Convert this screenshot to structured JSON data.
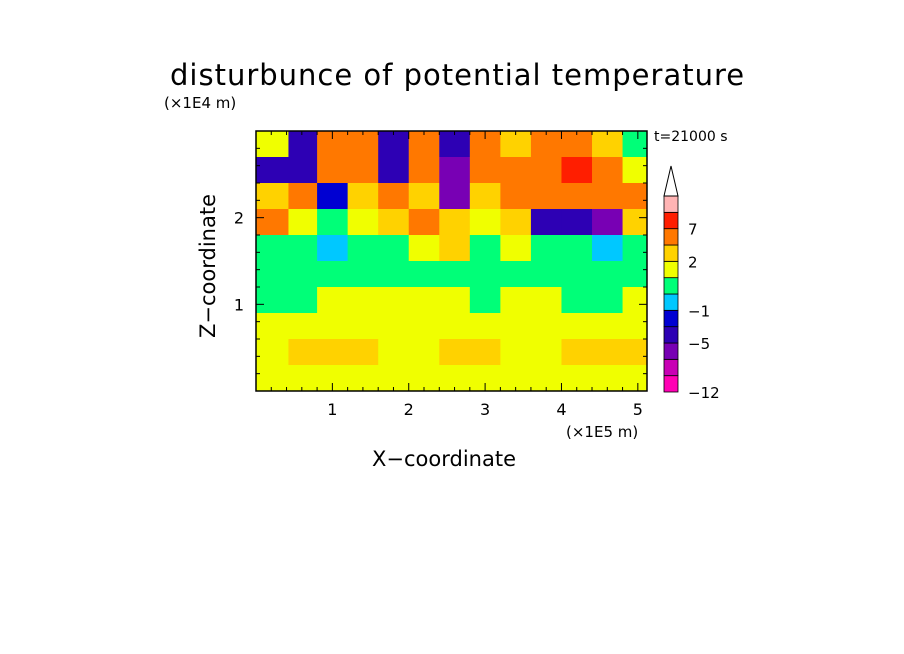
{
  "chart_data": {
    "type": "heatmap",
    "title": "disturbunce of potential temperature",
    "xlabel": "X−coordinate",
    "ylabel": "Z−coordinate",
    "x_unit": "(×1E5 m)",
    "y_unit": "(×1E4 m)",
    "annotation": "t=21000 s",
    "xlim": [
      0,
      5.12
    ],
    "ylim": [
      0,
      3.0
    ],
    "x_ticks": [
      1,
      2,
      3,
      4,
      5
    ],
    "y_ticks": [
      1,
      2
    ],
    "x_tick_labels": [
      "1",
      "2",
      "3",
      "4",
      "5"
    ],
    "y_tick_labels": [
      "1",
      "2"
    ],
    "colorbar": {
      "levels": [
        -12,
        -10,
        -7,
        -5,
        -3,
        -1,
        0,
        1,
        2,
        4,
        7,
        9,
        12
      ],
      "tick_labels": [
        {
          "label": "7",
          "level": 7
        },
        {
          "label": "2",
          "level": 2
        },
        {
          "label": "−1",
          "level": -1
        },
        {
          "label": "−5",
          "level": -5
        },
        {
          "label": "−12",
          "level": -12
        }
      ],
      "colors": [
        "#ff00b4",
        "#c800b4",
        "#7800b4",
        "#2d00b4",
        "#0000d2",
        "#00c8ff",
        "#00ff78",
        "#f0ff00",
        "#ffd200",
        "#ff7800",
        "#ff1e00",
        "#ffb4b4",
        "#ffffff"
      ],
      "extends_max": true
    },
    "field_rows_top_to_bottom": [
      {
        "z": 2.85,
        "x": [
          0.25,
          0.6,
          1.0,
          1.4,
          1.8,
          2.2,
          2.6,
          3.0,
          3.4,
          3.8,
          4.2,
          4.6,
          5.0
        ],
        "values": [
          1,
          -5,
          5,
          4,
          -5,
          6,
          -5,
          6,
          3,
          5,
          4,
          3,
          0
        ]
      },
      {
        "z": 2.55,
        "x": [
          0.25,
          0.6,
          1.0,
          1.4,
          1.8,
          2.2,
          2.6,
          3.0,
          3.4,
          3.8,
          4.2,
          4.6,
          5.0
        ],
        "values": [
          -5,
          -5,
          4,
          5,
          -5,
          5,
          -6,
          5,
          4,
          6,
          7,
          5,
          1
        ]
      },
      {
        "z": 2.25,
        "x": [
          0.25,
          0.6,
          1.0,
          1.4,
          1.8,
          2.2,
          2.6,
          3.0,
          3.4,
          3.8,
          4.2,
          4.6,
          5.0
        ],
        "values": [
          3,
          4,
          -2,
          3,
          5,
          3,
          -6,
          2,
          4,
          4,
          5,
          4,
          5
        ]
      },
      {
        "z": 1.95,
        "x": [
          0.25,
          0.6,
          1.0,
          1.4,
          1.8,
          2.2,
          2.6,
          3.0,
          3.4,
          3.8,
          4.2,
          4.6,
          5.0
        ],
        "values": [
          5,
          1,
          0,
          1,
          2,
          4,
          3,
          1,
          2,
          -5,
          -4,
          -6,
          2
        ]
      },
      {
        "z": 1.65,
        "x": [
          0.25,
          0.6,
          1.0,
          1.4,
          1.8,
          2.2,
          2.6,
          3.0,
          3.4,
          3.8,
          4.2,
          4.6,
          5.0
        ],
        "values": [
          0,
          0,
          -1,
          0,
          0,
          1,
          2,
          0,
          1,
          0,
          0,
          -1,
          0
        ]
      },
      {
        "z": 1.35,
        "x": [
          0.25,
          0.6,
          1.0,
          1.4,
          1.8,
          2.2,
          2.6,
          3.0,
          3.4,
          3.8,
          4.2,
          4.6,
          5.0
        ],
        "values": [
          0,
          0,
          0,
          0,
          0,
          0,
          0,
          0,
          0,
          0,
          0,
          0,
          0
        ]
      },
      {
        "z": 1.05,
        "x": [
          0.25,
          0.6,
          1.0,
          1.4,
          1.8,
          2.2,
          2.6,
          3.0,
          3.4,
          3.8,
          4.2,
          4.6,
          5.0
        ],
        "values": [
          0,
          0,
          1,
          1,
          1,
          1,
          1,
          0,
          1,
          1,
          0,
          0,
          1
        ]
      },
      {
        "z": 0.75,
        "x": [
          0.25,
          0.6,
          1.0,
          1.4,
          1.8,
          2.2,
          2.6,
          3.0,
          3.4,
          3.8,
          4.2,
          4.6,
          5.0
        ],
        "values": [
          1,
          1,
          1,
          1,
          1,
          1,
          1,
          1,
          1,
          1,
          1,
          1,
          1
        ]
      },
      {
        "z": 0.45,
        "x": [
          0.25,
          0.6,
          1.0,
          1.4,
          1.8,
          2.2,
          2.6,
          3.0,
          3.4,
          3.8,
          4.2,
          4.6,
          5.0
        ],
        "values": [
          1,
          2,
          2,
          2,
          1,
          1,
          2,
          2,
          1,
          1,
          2,
          2,
          2
        ]
      },
      {
        "z": 0.15,
        "x": [
          0.25,
          0.6,
          1.0,
          1.4,
          1.8,
          2.2,
          2.6,
          3.0,
          3.4,
          3.8,
          4.2,
          4.6,
          5.0
        ],
        "values": [
          1,
          1,
          1,
          1,
          1,
          1,
          1,
          1,
          1,
          1,
          1,
          1,
          1
        ]
      }
    ]
  }
}
